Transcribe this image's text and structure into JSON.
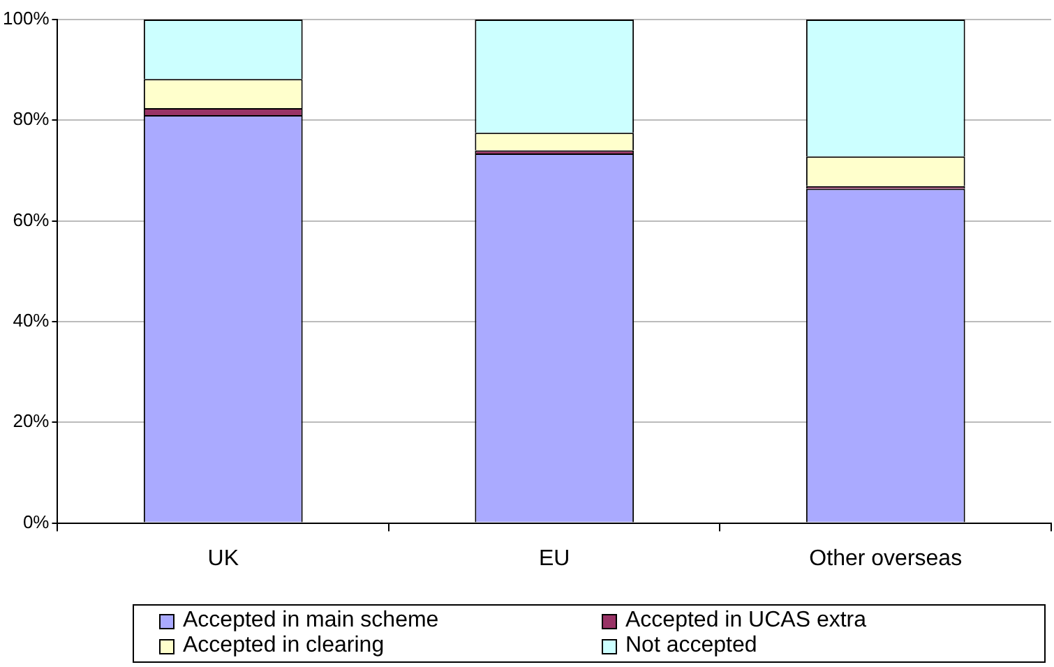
{
  "chart_data": {
    "type": "bar",
    "stacked": true,
    "categories": [
      "UK",
      "EU",
      "Other overseas"
    ],
    "series": [
      {
        "name": "Accepted in main scheme",
        "color": "#aaaaff",
        "values": [
          81.0,
          73.4,
          66.4
        ]
      },
      {
        "name": "Accepted in UCAS extra",
        "color": "#993366",
        "values": [
          1.4,
          0.6,
          0.5
        ]
      },
      {
        "name": "Accepted in clearing",
        "color": "#ffffcc",
        "values": [
          5.8,
          3.5,
          5.9
        ]
      },
      {
        "name": "Not accepted",
        "color": "#ccffff",
        "values": [
          11.8,
          22.5,
          27.2
        ]
      }
    ],
    "ylim": [
      0,
      100
    ],
    "yticks": [
      {
        "value": 0,
        "label": "0%"
      },
      {
        "value": 20,
        "label": "20%"
      },
      {
        "value": 40,
        "label": "40%"
      },
      {
        "value": 60,
        "label": "60%"
      },
      {
        "value": 80,
        "label": "80%"
      },
      {
        "value": 100,
        "label": "100%"
      }
    ],
    "grid": "y",
    "legend": "bottom"
  }
}
